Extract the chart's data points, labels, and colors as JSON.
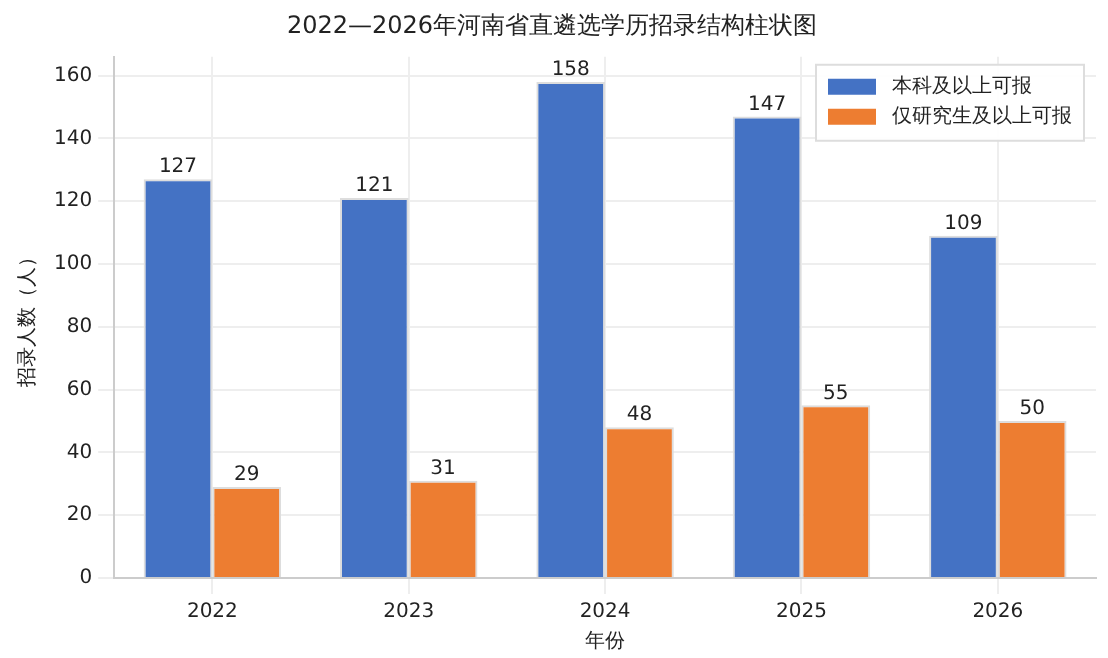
{
  "chart_data": {
    "type": "bar",
    "title": "2022—2026年河南省直遴选学历招录结构柱状图",
    "xlabel": "年份",
    "ylabel": "招录人数（人）",
    "categories": [
      "2022",
      "2023",
      "2024",
      "2025",
      "2026"
    ],
    "series": [
      {
        "name": "本科及以上可报",
        "color": "#4472c4",
        "values": [
          127,
          121,
          158,
          147,
          109
        ]
      },
      {
        "name": "仅研究生及以上可报",
        "color": "#ed7d31",
        "values": [
          29,
          31,
          48,
          55,
          50
        ]
      }
    ],
    "ylim": [
      0,
      166
    ],
    "yticks": [
      0,
      20,
      40,
      60,
      80,
      100,
      120,
      140,
      160
    ],
    "grid": true,
    "legend": "top right",
    "data_labels": true
  }
}
